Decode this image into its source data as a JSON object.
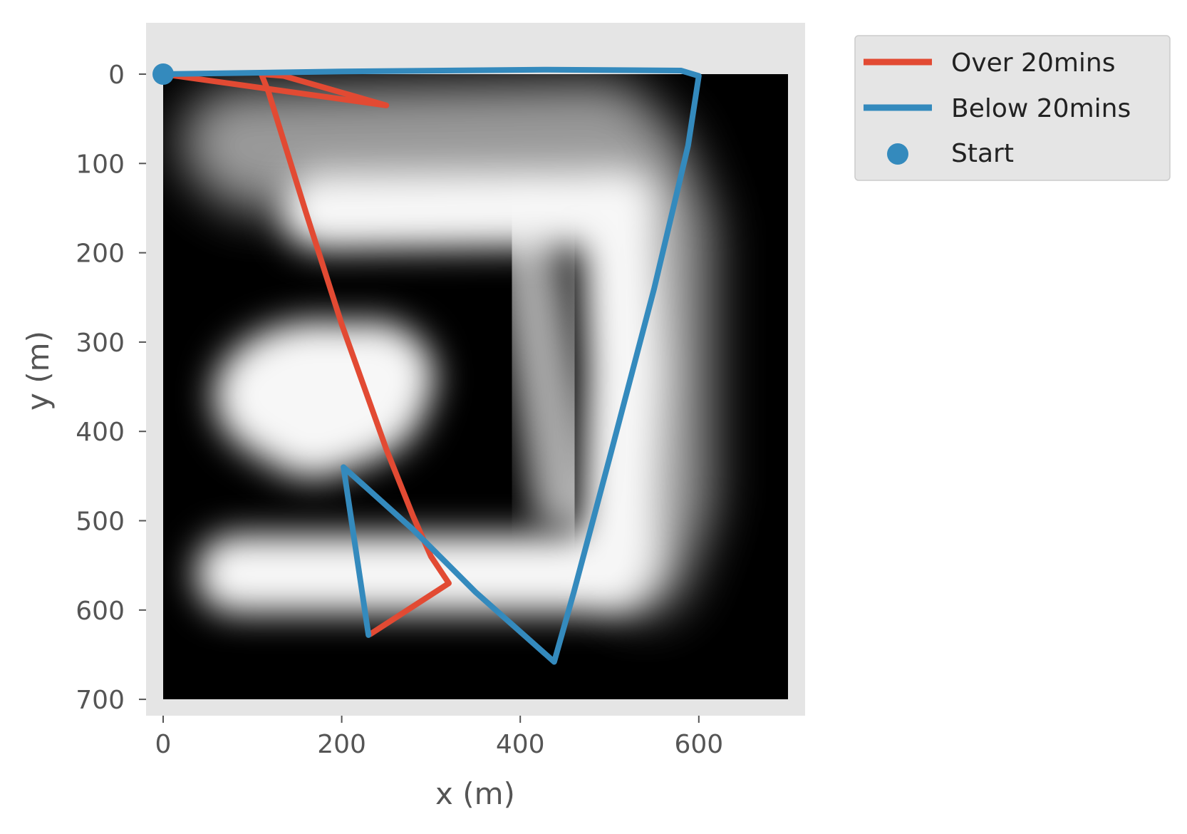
{
  "chart_data": {
    "type": "line",
    "xlabel": "x (m)",
    "ylabel": "y (m)",
    "xlim": [
      -20,
      720
    ],
    "ylim": [
      718,
      -58
    ],
    "y_inverted": true,
    "background_image_extent": [
      0,
      700,
      0,
      700
    ],
    "xticks": [
      0,
      200,
      400,
      600
    ],
    "yticks": [
      0,
      100,
      200,
      300,
      400,
      500,
      600,
      700
    ],
    "grid": false,
    "legend_position": "outside-upper-right",
    "series": [
      {
        "name": "Over 20mins",
        "color": "#E24A33",
        "points": [
          [
            0,
            0
          ],
          [
            250,
            35
          ],
          [
            135,
            2
          ],
          [
            110,
            0
          ],
          [
            118,
            20
          ],
          [
            160,
            155
          ],
          [
            200,
            280
          ],
          [
            250,
            420
          ],
          [
            280,
            495
          ],
          [
            300,
            540
          ],
          [
            320,
            570
          ],
          [
            232,
            627
          ]
        ]
      },
      {
        "name": "Below 20mins",
        "color": "#348ABD",
        "points": [
          [
            0,
            0
          ],
          [
            200,
            -3
          ],
          [
            430,
            -5
          ],
          [
            580,
            -4
          ],
          [
            600,
            2
          ],
          [
            588,
            80
          ],
          [
            550,
            240
          ],
          [
            500,
            430
          ],
          [
            460,
            580
          ],
          [
            438,
            658
          ],
          [
            350,
            580
          ],
          [
            280,
            510
          ],
          [
            202,
            440
          ],
          [
            230,
            628
          ]
        ]
      }
    ],
    "start": {
      "name": "Start",
      "x": 0,
      "y": 0,
      "color": "#348ABD"
    }
  }
}
